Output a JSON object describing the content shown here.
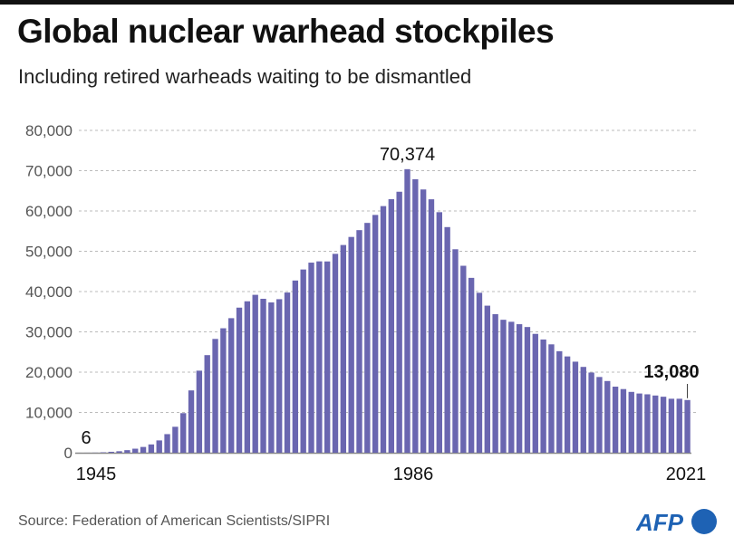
{
  "header": {
    "title": "Global nuclear warhead stockpiles",
    "subtitle": "Including retired warheads waiting to be dismantled"
  },
  "footer": {
    "source": "Source: Federation of American Scientists/SIPRI",
    "logo_text": "AFP"
  },
  "colors": {
    "bar": "#6A66B0",
    "grid": "#BBBBBB",
    "logo": "#1E62B4"
  },
  "chart_data": {
    "type": "bar",
    "title": "Global nuclear warhead stockpiles",
    "subtitle": "Including retired warheads waiting to be dismantled",
    "xlabel": "",
    "ylabel": "",
    "ylim": [
      0,
      80000
    ],
    "yticks": [
      0,
      10000,
      20000,
      30000,
      40000,
      50000,
      60000,
      70000,
      80000
    ],
    "ytick_labels": [
      "0",
      "10,000",
      "20,000",
      "30,000",
      "40,000",
      "50,000",
      "60,000",
      "70,000",
      "80,000"
    ],
    "xtick_labels": [
      "1945",
      "1986",
      "2021"
    ],
    "grid": true,
    "grid_style": "dashed horizontal",
    "annotations": [
      {
        "year": 1945,
        "label": "6",
        "bold": false
      },
      {
        "year": 1986,
        "label": "70,374",
        "bold": false
      },
      {
        "year": 2021,
        "label": "13,080",
        "bold": true
      }
    ],
    "categories": [
      1945,
      1946,
      1947,
      1948,
      1949,
      1950,
      1951,
      1952,
      1953,
      1954,
      1955,
      1956,
      1957,
      1958,
      1959,
      1960,
      1961,
      1962,
      1963,
      1964,
      1965,
      1966,
      1967,
      1968,
      1969,
      1970,
      1971,
      1972,
      1973,
      1974,
      1975,
      1976,
      1977,
      1978,
      1979,
      1980,
      1981,
      1982,
      1983,
      1984,
      1985,
      1986,
      1987,
      1988,
      1989,
      1990,
      1991,
      1992,
      1993,
      1994,
      1995,
      1996,
      1997,
      1998,
      1999,
      2000,
      2001,
      2002,
      2003,
      2004,
      2005,
      2006,
      2007,
      2008,
      2009,
      2010,
      2011,
      2012,
      2013,
      2014,
      2015,
      2016,
      2017,
      2018,
      2019,
      2020,
      2021
    ],
    "values": [
      6,
      11,
      32,
      110,
      235,
      369,
      640,
      1005,
      1436,
      2063,
      3057,
      4618,
      6444,
      9822,
      15468,
      20368,
      24225,
      28243,
      30891,
      33395,
      36011,
      37585,
      39193,
      38207,
      37305,
      38107,
      39761,
      42739,
      45476,
      47182,
      47496,
      47476,
      49361,
      51553,
      53555,
      55246,
      57041,
      59017,
      61210,
      62929,
      64775,
      70374,
      67879,
      65339,
      62900,
      59700,
      56000,
      50500,
      46400,
      43400,
      39700,
      36500,
      34400,
      33000,
      32500,
      31900,
      31200,
      29500,
      28100,
      26900,
      25200,
      23900,
      22600,
      21300,
      19900,
      18800,
      17800,
      16400,
      15800,
      15100,
      14700,
      14500,
      14200,
      13900,
      13400,
      13400,
      13080
    ]
  }
}
